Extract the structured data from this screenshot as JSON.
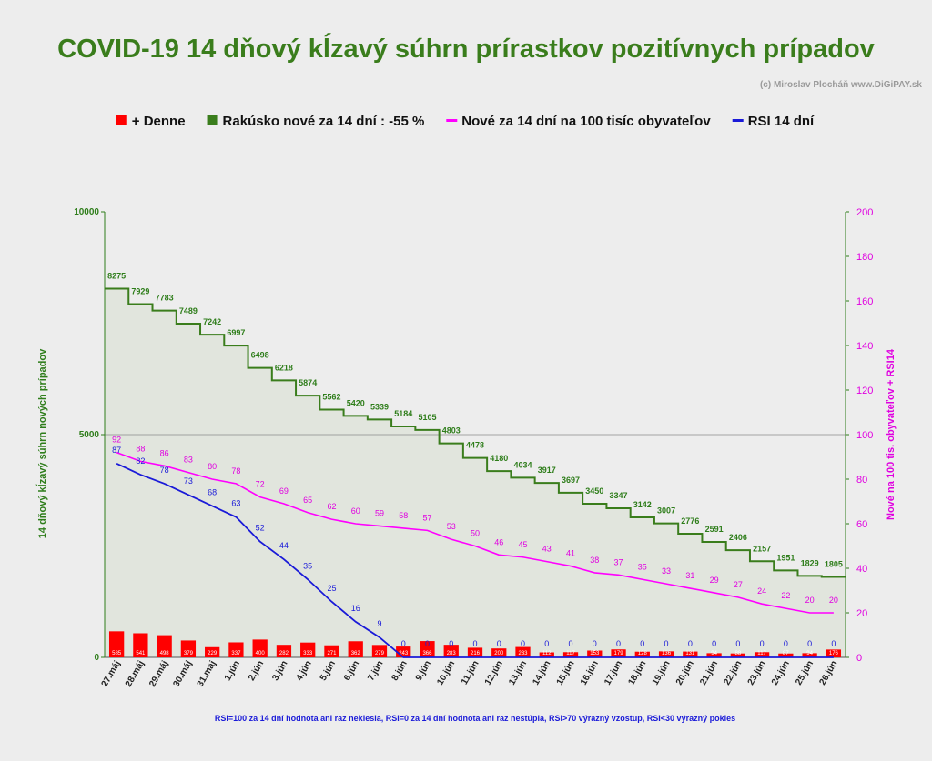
{
  "chart_data": {
    "type": "line",
    "title": "COVID-19 14 dňový kĺzavý súhrn prírastkov pozitívnych prípadov",
    "credit": "(c) Miroslav Plocháň  www.DiGiPAY.sk",
    "ylabel_left": "14 dňový kĺzavý  súhrn nových prípadov",
    "ylabel_right": "Nové na 100 tis. obyvateľov + RSI14",
    "ylim_left": [
      0,
      10000
    ],
    "ylim_right": [
      0,
      200
    ],
    "yticks_left": [
      "0",
      "5000",
      "10000"
    ],
    "yticks_right": [
      "0",
      "20",
      "40",
      "60",
      "80",
      "100",
      "120",
      "140",
      "160",
      "180",
      "200"
    ],
    "grid": "horizontal at 5000",
    "legend_position": "top",
    "categories": [
      "27.máj",
      "28.máj",
      "29.máj",
      "30.máj",
      "31.máj",
      "1.jún",
      "2.jún",
      "3.jún",
      "4.jún",
      "5.jún",
      "6.jún",
      "7.jún",
      "8.jún",
      "9.jún",
      "10.jún",
      "11.jún",
      "12.jún",
      "13.jún",
      "14.jún",
      "15.jún",
      "16.jún",
      "17.jún",
      "18.jún",
      "19.jún",
      "20.jún",
      "21.jún",
      "22.jún",
      "23.jún",
      "24.jún",
      "25.jún",
      "26.jún"
    ],
    "series": [
      {
        "name": "+ Denne",
        "type": "bar",
        "axis": "left",
        "color": "#ff0000",
        "values": [
          585,
          541,
          498,
          379,
          229,
          337,
          400,
          282,
          333,
          271,
          362,
          279,
          243,
          366,
          283,
          216,
          200,
          233,
          112,
          117,
          153,
          179,
          128,
          136,
          131,
          94,
          88,
          117,
          87,
          94,
          176
        ],
        "labels": [
          "585",
          "541",
          "498",
          "379",
          "229",
          "337",
          "400",
          "282",
          "333",
          "271",
          "362",
          "279",
          "243",
          "366",
          "283",
          "216",
          "200",
          "233",
          "112",
          "117",
          "153",
          "179",
          "128",
          "136",
          "131",
          "94",
          "88",
          "117",
          "87",
          "94",
          "176"
        ]
      },
      {
        "name": "Rakúsko nové za 14 dní : -55 %",
        "type": "step",
        "axis": "left",
        "color": "#3a7d1c",
        "values": [
          8275,
          7929,
          7783,
          7489,
          7242,
          6997,
          6498,
          6218,
          5874,
          5562,
          5420,
          5339,
          5184,
          5105,
          4803,
          4478,
          4180,
          4034,
          3917,
          3697,
          3450,
          3347,
          3142,
          3007,
          2776,
          2591,
          2406,
          2157,
          1951,
          1829,
          1805
        ],
        "labels": [
          "8275",
          "7929",
          "7783",
          "7489",
          "7242",
          "6997",
          "6498",
          "6218",
          "5874",
          "5562",
          "5420",
          "5339",
          "5184",
          "5105",
          "4803",
          "4478",
          "4180",
          "4034",
          "3917",
          "3697",
          "3450",
          "3347",
          "3142",
          "3007",
          "2776",
          "2591",
          "2406",
          "2157",
          "1951",
          "1829",
          "1805"
        ]
      },
      {
        "name": "Nové za 14 dní na 100 tisíc obyvateľov",
        "type": "line",
        "axis": "right",
        "color": "#ff00ff",
        "values": [
          92,
          88,
          86,
          83,
          80,
          78,
          72,
          69,
          65,
          62,
          60,
          59,
          58,
          57,
          53,
          50,
          46,
          45,
          43,
          41,
          38,
          37,
          35,
          33,
          31,
          29,
          27,
          24,
          22,
          20,
          20
        ],
        "labels": [
          "92",
          "88",
          "86",
          "83",
          "80",
          "78",
          "72",
          "69",
          "65",
          "62",
          "60",
          "59",
          "58",
          "57",
          "53",
          "50",
          "46",
          "45",
          "43",
          "41",
          "38",
          "37",
          "35",
          "33",
          "31",
          "29",
          "27",
          "24",
          "22",
          "20",
          "20"
        ]
      },
      {
        "name": "RSI 14 dní",
        "type": "line",
        "axis": "right",
        "color": "#1a1ad8",
        "values": [
          87,
          82,
          78,
          73,
          68,
          63,
          52,
          44,
          35,
          25,
          16,
          9,
          0,
          0,
          0,
          0,
          0,
          0,
          0,
          0,
          0,
          0,
          0,
          0,
          0,
          0,
          0,
          0,
          0,
          0,
          0
        ],
        "labels": [
          "87",
          "82",
          "78",
          "73",
          "68",
          "63",
          "52",
          "44",
          "35",
          "25",
          "16",
          "9",
          "0",
          "0",
          "0",
          "0",
          "0",
          "0",
          "0",
          "0",
          "0",
          "0",
          "0",
          "0",
          "0",
          "0",
          "0",
          "0",
          "0",
          "0",
          "0"
        ]
      }
    ],
    "footnote": "RSI=100 za 14 dní hodnota ani raz neklesla, RSI=0 za 14 dní hodnota ani raz nestúpla, RSI>70 výrazný  vzostup, RSI<30 výrazný pokles",
    "colors": {
      "background": "#ededed",
      "plot_area": "#e1e5dd",
      "green": "#3a7d1c",
      "magenta": "#ff00ff",
      "blue": "#1a1ad8",
      "red": "#ff0000"
    }
  }
}
